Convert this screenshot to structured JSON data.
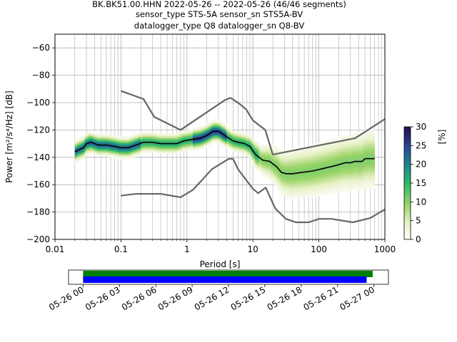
{
  "chart_data": [
    {
      "type": "heatmap",
      "title_lines": [
        "BK.BK51.00.HHN   2022-05-26 -- 2022-05-26  (46/46 segments)",
        "sensor_type STS-5A sensor_sn STS5A-BV",
        "datalogger_type Q8 datalogger_sn Q8-BV"
      ],
      "xlabel": "Period [s]",
      "ylabel": "Power [m²/s⁴/Hz] [dB]",
      "x_scale": "log",
      "xlim": [
        0.01,
        1000
      ],
      "ylim": [
        -200,
        -50
      ],
      "grid": true,
      "x_ticks": [
        {
          "value": 0.01,
          "label": "0.01"
        },
        {
          "value": 0.1,
          "label": "0.1"
        },
        {
          "value": 1,
          "label": "1"
        },
        {
          "value": 10,
          "label": "10"
        },
        {
          "value": 100,
          "label": "100"
        },
        {
          "value": 1000,
          "label": "1000"
        }
      ],
      "y_ticks": [
        -200,
        -180,
        -160,
        -140,
        -120,
        -100,
        -80,
        -60
      ],
      "colorbar": {
        "label": "[%]",
        "range": [
          0,
          30
        ],
        "ticks": [
          0,
          5,
          10,
          15,
          20,
          25,
          30
        ]
      },
      "series": [
        {
          "role": "mode",
          "color": "#000000",
          "points": [
            [
              0.02,
              -136
            ],
            [
              0.024,
              -134
            ],
            [
              0.027,
              -133
            ],
            [
              0.03,
              -130
            ],
            [
              0.035,
              -129
            ],
            [
              0.045,
              -131
            ],
            [
              0.06,
              -131
            ],
            [
              0.08,
              -132
            ],
            [
              0.1,
              -133
            ],
            [
              0.13,
              -133
            ],
            [
              0.17,
              -131
            ],
            [
              0.22,
              -129
            ],
            [
              0.3,
              -129
            ],
            [
              0.4,
              -130
            ],
            [
              0.55,
              -130
            ],
            [
              0.7,
              -130
            ],
            [
              0.9,
              -128
            ],
            [
              1.2,
              -127
            ],
            [
              1.6,
              -126
            ],
            [
              2.0,
              -124
            ],
            [
              2.5,
              -121
            ],
            [
              3.0,
              -121
            ],
            [
              3.5,
              -123
            ],
            [
              4.0,
              -125
            ],
            [
              5.0,
              -128
            ],
            [
              6.0,
              -129
            ],
            [
              7.5,
              -130
            ],
            [
              9.0,
              -132
            ],
            [
              11.0,
              -138
            ],
            [
              14.0,
              -142
            ],
            [
              18.0,
              -143
            ],
            [
              23.0,
              -147
            ],
            [
              27.0,
              -151
            ],
            [
              32.0,
              -152
            ],
            [
              40.0,
              -152
            ],
            [
              55.0,
              -151
            ],
            [
              80.0,
              -150
            ],
            [
              120.0,
              -148
            ],
            [
              180.0,
              -146
            ],
            [
              250.0,
              -144
            ],
            [
              300.0,
              -144
            ],
            [
              350.0,
              -143
            ],
            [
              450.0,
              -143
            ],
            [
              500.0,
              -141
            ],
            [
              700.0,
              -141
            ]
          ]
        },
        {
          "role": "high-noise-model",
          "color": "#666666",
          "points": [
            [
              0.1,
              -91.5
            ],
            [
              0.22,
              -97.4
            ],
            [
              0.32,
              -110.5
            ],
            [
              0.8,
              -120
            ],
            [
              3.8,
              -98
            ],
            [
              4.6,
              -96.5
            ],
            [
              6.3,
              -101
            ],
            [
              7.9,
              -105
            ],
            [
              10,
              -113
            ],
            [
              15.4,
              -120
            ],
            [
              20,
              -138
            ],
            [
              354.8,
              -126
            ],
            [
              1000,
              -112
            ]
          ]
        },
        {
          "role": "low-noise-model",
          "color": "#666666",
          "points": [
            [
              0.1,
              -168
            ],
            [
              0.17,
              -166.7
            ],
            [
              0.4,
              -166.7
            ],
            [
              0.8,
              -169.2
            ],
            [
              1.24,
              -163.7
            ],
            [
              2.4,
              -148.6
            ],
            [
              4.3,
              -141.1
            ],
            [
              5.0,
              -141.1
            ],
            [
              6.0,
              -149
            ],
            [
              10.0,
              -163
            ],
            [
              12.0,
              -166.2
            ],
            [
              15.6,
              -162.1
            ],
            [
              21.9,
              -177.5
            ],
            [
              31.6,
              -185
            ],
            [
              45,
              -187.5
            ],
            [
              70,
              -187.5
            ],
            [
              101,
              -185
            ],
            [
              154,
              -185
            ],
            [
              328,
              -187.5
            ],
            [
              600,
              -184.4
            ],
            [
              1000,
              -178
            ]
          ]
        }
      ]
    },
    {
      "type": "timeline",
      "x_tick_labels": [
        "05-26 00",
        "05-26 03",
        "05-26 06",
        "05-26 09",
        "05-26 12",
        "05-26 15",
        "05-26 18",
        "05-26 21",
        "05-27 00"
      ],
      "bars": [
        {
          "color": "#008000",
          "start_hour": 0,
          "end_hour": 23.9
        },
        {
          "color": "#0000ff",
          "start_hour": 0,
          "end_hour": 23.4
        }
      ],
      "xlim_hours": [
        -1.2,
        25.2
      ]
    }
  ]
}
